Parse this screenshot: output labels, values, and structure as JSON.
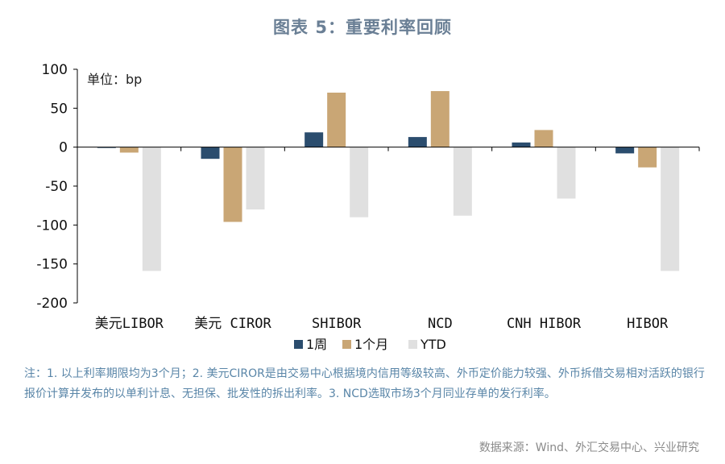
{
  "title": "图表 5：重要利率回顾",
  "chart_data": {
    "type": "bar",
    "unit_label": "单位：bp",
    "categories": [
      "美元LIBOR",
      "美元 CIROR",
      "SHIBOR",
      "NCD",
      "CNH HIBOR",
      "HIBOR"
    ],
    "series": [
      {
        "name": "1周",
        "color": "#2b4d6e",
        "values": [
          -1,
          -15,
          19,
          13,
          6,
          -8
        ]
      },
      {
        "name": "1个月",
        "color": "#c9a675",
        "values": [
          -7,
          -96,
          70,
          72,
          22,
          -26
        ]
      },
      {
        "name": "YTD",
        "color": "#e0e0e0",
        "values": [
          -159,
          -80,
          -90,
          -88,
          -66,
          -159
        ]
      }
    ],
    "ylim": [
      -200,
      100
    ],
    "yticks": [
      100,
      50,
      0,
      -50,
      -100,
      -150,
      -200
    ],
    "legend": "bottom-center",
    "grid": false
  },
  "notes": "注：1. 以上利率期限均为3个月；2. 美元CIROR是由交易中心根据境内信用等级较高、外币定价能力较强、外币拆借交易相对活跃的银行报价计算并发布的以单利计息、无担保、批发性的拆出利率。3. NCD选取市场3个月同业存单的发行利率。",
  "source": "数据来源：Wind、外汇交易中心、兴业研究"
}
